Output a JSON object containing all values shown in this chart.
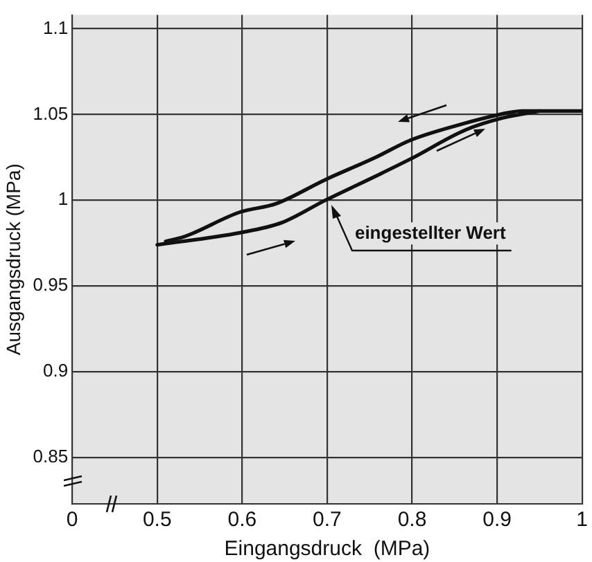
{
  "chart_data": {
    "type": "line",
    "xlabel": "Eingangsdruck  (MPa)",
    "ylabel": "Ausgangsdruck (MPa)",
    "xlim": [
      0.4,
      1.0
    ],
    "xticks": [
      {
        "value": 0.4,
        "label": "0"
      },
      0.5,
      0.6,
      0.7,
      0.8,
      0.9,
      1
    ],
    "ylim": [
      0.823,
      1.108
    ],
    "yticks": [
      0.85,
      0.9,
      0.95,
      1.0,
      1.05,
      1.1
    ],
    "grid": true,
    "legend": false,
    "marker": "none",
    "line_style": "solid",
    "series": [
      {
        "color": "#111111",
        "x": [
          0.51,
          0.533,
          0.597,
          0.64,
          0.698,
          0.757,
          0.798,
          0.863,
          0.913,
          0.93,
          1.0
        ],
        "values": [
          0.976,
          0.979,
          0.993,
          0.998,
          1.012,
          1.025,
          1.035,
          1.045,
          1.051,
          1.052,
          1.052
        ]
      },
      {
        "color": "#111111",
        "x": [
          0.5,
          0.597,
          0.647,
          0.698,
          0.757,
          0.798,
          0.863,
          0.907,
          0.95
        ],
        "values": [
          0.974,
          0.981,
          0.987,
          1.0,
          1.014,
          1.024,
          1.041,
          1.048,
          1.052
        ]
      }
    ],
    "annotations": [
      {
        "text": "eingestellter Wert",
        "x": 0.7,
        "y": 1.0
      }
    ]
  }
}
